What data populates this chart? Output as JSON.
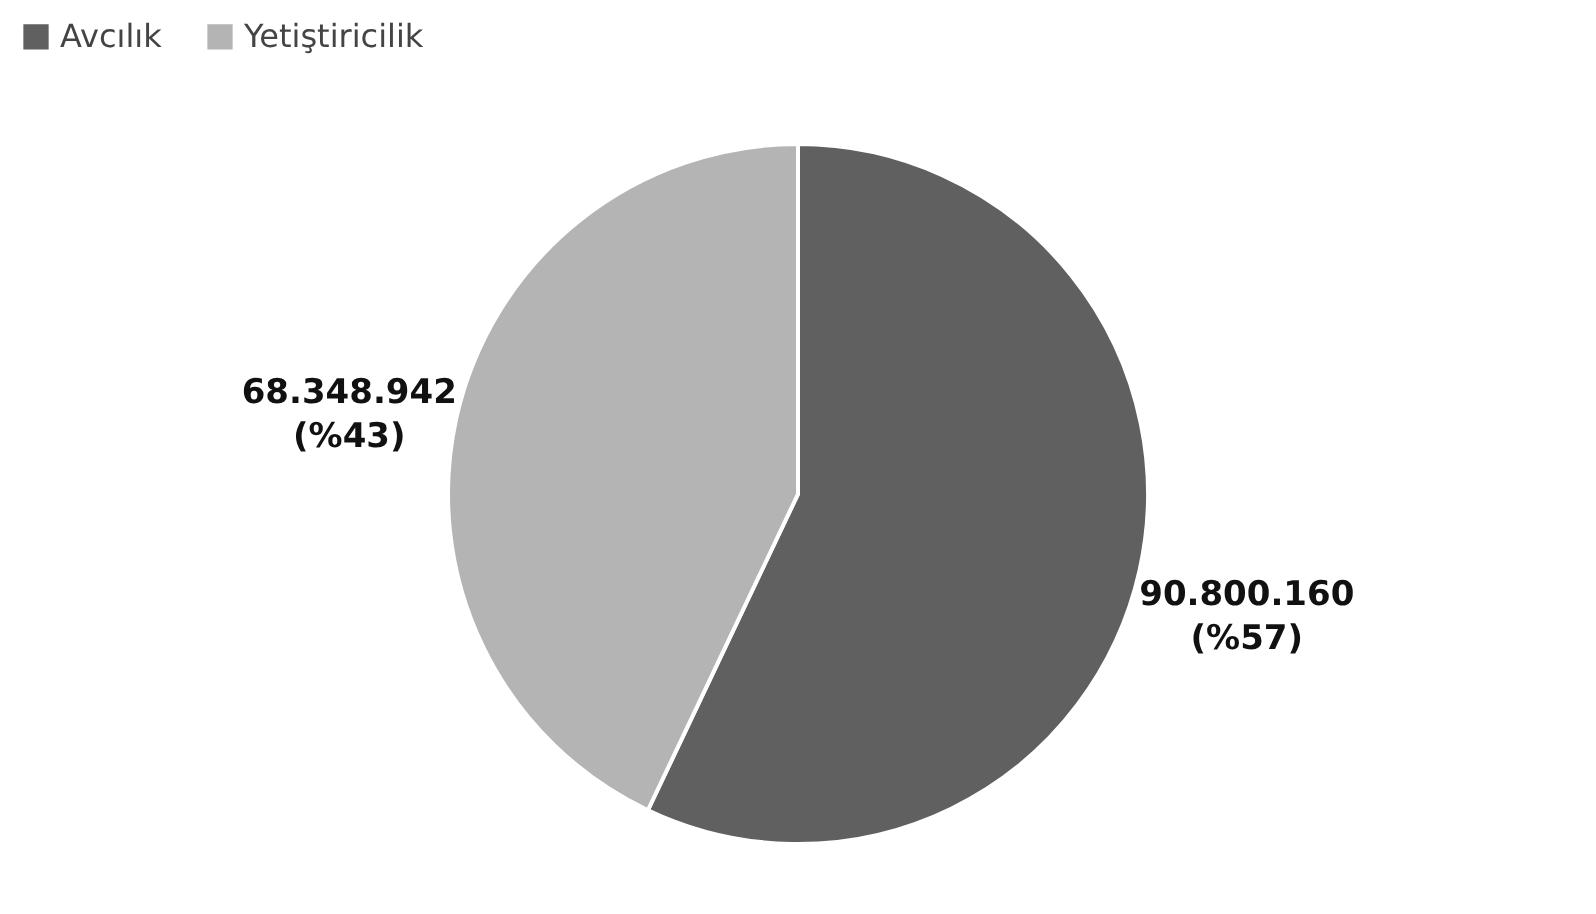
{
  "chart_data": {
    "type": "pie",
    "categories": [
      "Avcılık",
      "Yetiştiricilik"
    ],
    "values": [
      90800160,
      68348942
    ],
    "colors": [
      "#606060",
      "#b4b4b4"
    ],
    "value_labels": [
      "90.800.160 (%57)",
      "68.348.942 (%43)"
    ],
    "legend": "top"
  }
}
